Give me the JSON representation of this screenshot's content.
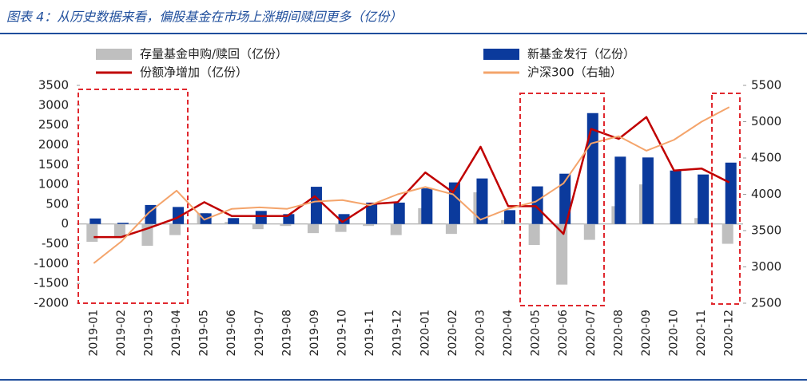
{
  "chart_data": {
    "type": "combo",
    "title": "图表 4：从历史数据来看，偏股基金在市场上涨期间赎回更多（亿份）",
    "categories": [
      "2019-01",
      "2019-02",
      "2019-03",
      "2019-04",
      "2019-05",
      "2019-06",
      "2019-07",
      "2019-08",
      "2019-09",
      "2019-10",
      "2019-11",
      "2019-12",
      "2020-01",
      "2020-02",
      "2020-03",
      "2020-04",
      "2020-05",
      "2020-06",
      "2020-07",
      "2020-08",
      "2020-09",
      "2020-10",
      "2020-11",
      "2020-12"
    ],
    "series": [
      {
        "name": "存量基金申购/赎回（亿份）",
        "type": "bar",
        "color": "#bfbfbf",
        "values": [
          -450,
          -350,
          -550,
          -280,
          280,
          50,
          -130,
          -50,
          -230,
          -200,
          -50,
          -280,
          400,
          -250,
          800,
          100,
          -530,
          -1530,
          -400,
          450,
          1000,
          0,
          150,
          -500
        ]
      },
      {
        "name": "新基金发行（亿份）",
        "type": "bar",
        "color": "#0b3a9c",
        "values": [
          140,
          30,
          480,
          430,
          270,
          150,
          330,
          250,
          940,
          250,
          540,
          540,
          900,
          1050,
          1150,
          350,
          950,
          1270,
          2800,
          1700,
          1680,
          1350,
          1250,
          1550
        ]
      },
      {
        "name": "份额净增加（亿份）",
        "type": "line",
        "color": "#c00000",
        "values": [
          -330,
          -330,
          -100,
          150,
          550,
          200,
          200,
          200,
          700,
          50,
          500,
          550,
          1300,
          800,
          1950,
          450,
          450,
          -250,
          2400,
          2150,
          2700,
          1350,
          1400,
          1050
        ]
      },
      {
        "name": "沪深300（右轴）",
        "type": "line",
        "axis": "y2",
        "color": "#f4a46b",
        "values": [
          3050,
          3350,
          3750,
          4050,
          3650,
          3800,
          3820,
          3800,
          3900,
          3920,
          3850,
          4000,
          4100,
          4000,
          3650,
          3800,
          3900,
          4150,
          4700,
          4800,
          4600,
          4750,
          5000,
          5200
        ]
      }
    ],
    "ylim": [
      -2000,
      3500
    ],
    "yticks": [
      -2000,
      -1500,
      -1000,
      -500,
      0,
      500,
      1000,
      1500,
      2000,
      2500,
      3000,
      3500
    ],
    "y2lim": [
      2500,
      5500
    ],
    "y2ticks": [
      2500,
      3000,
      3500,
      4000,
      4500,
      5000,
      5500
    ]
  }
}
